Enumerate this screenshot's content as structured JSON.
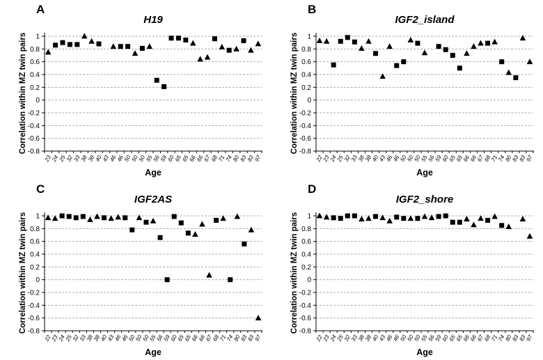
{
  "figure": {
    "background": "#ffffff",
    "text_color": "#000000",
    "gridline_color": "#ababab",
    "marker_color": "#000000"
  },
  "chart_data": [
    {
      "type": "scatter",
      "panel_label": "A",
      "title": "H19",
      "xlabel": "Age",
      "ylabel": "Correlation within MZ twin pairs",
      "ylim": [
        -0.8,
        1
      ],
      "yticks": [
        1,
        0.8,
        0.6,
        0.4,
        0.2,
        0,
        -0.2,
        -0.4,
        -0.6,
        -0.8
      ],
      "grid": "horizontal-dashed",
      "legend": false,
      "marker_shapes": [
        "square",
        "triangle"
      ],
      "categories": [
        "23",
        "24",
        "25",
        "32",
        "33",
        "38",
        "38",
        "40",
        "43",
        "46",
        "46",
        "50",
        "50",
        "50",
        "55",
        "56",
        "59",
        "60",
        "65",
        "65",
        "66",
        "66",
        "67",
        "68",
        "71",
        "74",
        "80",
        "83",
        "83",
        "97"
      ],
      "values": [
        0.75,
        0.86,
        0.9,
        0.87,
        0.87,
        1.0,
        0.92,
        0.88,
        null,
        0.84,
        0.84,
        0.84,
        0.73,
        0.81,
        0.84,
        0.31,
        0.21,
        0.97,
        0.97,
        0.94,
        0.89,
        0.64,
        0.67,
        0.96,
        0.83,
        0.78,
        0.8,
        0.93,
        0.78,
        0.88
      ],
      "markers": [
        "triangle",
        "square",
        "square",
        "square",
        "square",
        "triangle",
        "triangle",
        "square",
        null,
        "triangle",
        "square",
        "square",
        "triangle",
        "square",
        "triangle",
        "square",
        "square",
        "square",
        "square",
        "square",
        "triangle",
        "triangle",
        "triangle",
        "square",
        "triangle",
        "square",
        "triangle",
        "square",
        "triangle",
        "triangle"
      ]
    },
    {
      "type": "scatter",
      "panel_label": "B",
      "title": "IGF2_island",
      "xlabel": "Age",
      "ylabel": "Correlation within MZ twin pairs",
      "ylim": [
        -0.8,
        1
      ],
      "yticks": [
        1,
        0.8,
        0.6,
        0.4,
        0.2,
        0,
        -0.2,
        -0.4,
        -0.6,
        -0.8
      ],
      "grid": "horizontal-dashed",
      "legend": false,
      "marker_shapes": [
        "square",
        "triangle"
      ],
      "categories": [
        "22",
        "23",
        "24",
        "25",
        "32",
        "33",
        "38",
        "38",
        "40",
        "43",
        "46",
        "46",
        "50",
        "50",
        "50",
        "55",
        "56",
        "59",
        "60",
        "65",
        "65",
        "66",
        "66",
        "67",
        "68",
        "71",
        "74",
        "80",
        "83",
        "83",
        "97"
      ],
      "values": [
        0.93,
        0.92,
        0.55,
        0.92,
        0.98,
        0.91,
        0.81,
        0.92,
        0.73,
        0.37,
        0.84,
        0.54,
        0.6,
        0.94,
        0.89,
        0.74,
        null,
        0.84,
        0.79,
        0.7,
        0.5,
        0.73,
        0.84,
        0.89,
        0.89,
        0.91,
        0.6,
        0.43,
        0.35,
        0.97,
        0.6
      ],
      "markers": [
        "triangle",
        "triangle",
        "square",
        "square",
        "square",
        "square",
        "triangle",
        "triangle",
        "square",
        "triangle",
        "triangle",
        "square",
        "square",
        "triangle",
        "square",
        "triangle",
        null,
        "square",
        "square",
        "square",
        "square",
        "triangle",
        "triangle",
        "triangle",
        "square",
        "triangle",
        "square",
        "triangle",
        "square",
        "triangle",
        "triangle"
      ]
    },
    {
      "type": "scatter",
      "panel_label": "C",
      "title": "IGF2AS",
      "xlabel": "Age",
      "ylabel": "Correlation within MZ twin pairs",
      "ylim": [
        -0.8,
        1
      ],
      "yticks": [
        1,
        0.8,
        0.6,
        0.4,
        0.2,
        0,
        -0.2,
        -0.4,
        -0.6,
        -0.8
      ],
      "grid": "horizontal-dashed",
      "legend": false,
      "marker_shapes": [
        "square",
        "triangle"
      ],
      "categories": [
        "22",
        "23",
        "24",
        "25",
        "32",
        "33",
        "38",
        "38",
        "40",
        "43",
        "46",
        "46",
        "50",
        "50",
        "50",
        "55",
        "56",
        "59",
        "60",
        "65",
        "65",
        "66",
        "66",
        "67",
        "68",
        "71",
        "74",
        "80",
        "83",
        "83",
        "97"
      ],
      "values": [
        0.97,
        0.96,
        1.0,
        0.99,
        0.97,
        0.99,
        0.94,
        0.99,
        0.97,
        0.96,
        0.98,
        0.97,
        0.78,
        0.97,
        0.9,
        0.92,
        0.66,
        0.0,
        0.99,
        0.89,
        0.73,
        0.71,
        0.87,
        0.07,
        0.93,
        0.96,
        0.0,
        0.99,
        0.56,
        0.78,
        -0.6
      ],
      "markers": [
        "triangle",
        "triangle",
        "square",
        "square",
        "square",
        "square",
        "triangle",
        "triangle",
        "square",
        "triangle",
        "triangle",
        "square",
        "square",
        "triangle",
        "square",
        "triangle",
        "square",
        "square",
        "square",
        "square",
        "square",
        "triangle",
        "triangle",
        "triangle",
        "square",
        "triangle",
        "square",
        "triangle",
        "square",
        "triangle",
        "triangle"
      ]
    },
    {
      "type": "scatter",
      "panel_label": "D",
      "title": "IGF2_shore",
      "xlabel": "Age",
      "ylabel": "Correlation within MZ twin pairs",
      "ylim": [
        -0.8,
        1
      ],
      "yticks": [
        1,
        0.8,
        0.6,
        0.4,
        0.2,
        0,
        -0.2,
        -0.4,
        -0.6,
        -0.8
      ],
      "grid": "horizontal-dashed",
      "legend": false,
      "marker_shapes": [
        "square",
        "triangle"
      ],
      "categories": [
        "22",
        "23",
        "24",
        "25",
        "32",
        "33",
        "38",
        "38",
        "40",
        "43",
        "46",
        "46",
        "50",
        "50",
        "50",
        "55",
        "56",
        "59",
        "60",
        "65",
        "65",
        "66",
        "66",
        "67",
        "68",
        "71",
        "74",
        "80",
        "83",
        "83",
        "97"
      ],
      "values": [
        1.0,
        0.98,
        0.97,
        0.96,
        1.0,
        1.0,
        0.95,
        0.96,
        0.99,
        0.97,
        0.92,
        0.98,
        0.96,
        0.96,
        0.96,
        0.99,
        0.97,
        0.99,
        1.0,
        0.9,
        0.9,
        0.95,
        0.86,
        0.96,
        0.93,
        0.99,
        0.85,
        0.83,
        null,
        0.95,
        0.68
      ],
      "markers": [
        "triangle",
        "triangle",
        "square",
        "square",
        "square",
        "square",
        "triangle",
        "triangle",
        "square",
        "triangle",
        "triangle",
        "square",
        "square",
        "triangle",
        "square",
        "triangle",
        "triangle",
        "square",
        "square",
        "square",
        "square",
        "triangle",
        "triangle",
        "triangle",
        "square",
        "triangle",
        "square",
        "triangle",
        null,
        "triangle",
        "triangle"
      ]
    }
  ]
}
